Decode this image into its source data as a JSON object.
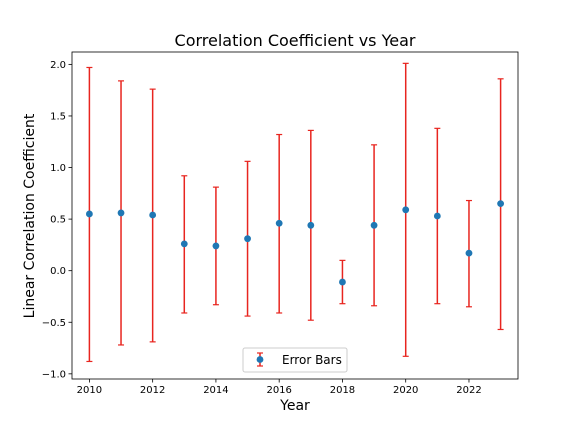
{
  "chart_data": {
    "type": "scatter",
    "title": "Correlation Coefficient vs Year",
    "xlabel": "Year",
    "ylabel": "Linear Correlation Coefficient",
    "xlim": [
      2009.45,
      2023.55
    ],
    "ylim": [
      -1.05,
      2.12
    ],
    "xticks": [
      2010,
      2012,
      2014,
      2016,
      2018,
      2020,
      2022
    ],
    "yticks": [
      -1.0,
      -0.5,
      0.0,
      0.5,
      1.0,
      1.5,
      2.0
    ],
    "grid": false,
    "legend": {
      "position": "bottom-center",
      "entries": [
        "Error Bars"
      ]
    },
    "colors": {
      "marker": "#1f77b4",
      "errorbar": "#e8251f"
    },
    "series": [
      {
        "name": "Error Bars",
        "x": [
          2010,
          2011,
          2012,
          2013,
          2014,
          2015,
          2016,
          2017,
          2018,
          2019,
          2020,
          2021,
          2022,
          2023
        ],
        "y": [
          0.55,
          0.56,
          0.54,
          0.26,
          0.24,
          0.31,
          0.46,
          0.44,
          -0.11,
          0.44,
          0.59,
          0.53,
          0.17,
          0.65
        ],
        "y_low": [
          -0.88,
          -0.72,
          -0.69,
          -0.41,
          -0.33,
          -0.44,
          -0.41,
          -0.48,
          -0.32,
          -0.34,
          -0.83,
          -0.32,
          -0.35,
          -0.57
        ],
        "y_high": [
          1.97,
          1.84,
          1.76,
          0.92,
          0.81,
          1.06,
          1.32,
          1.36,
          0.1,
          1.22,
          2.01,
          1.38,
          0.68,
          1.86
        ]
      }
    ]
  }
}
